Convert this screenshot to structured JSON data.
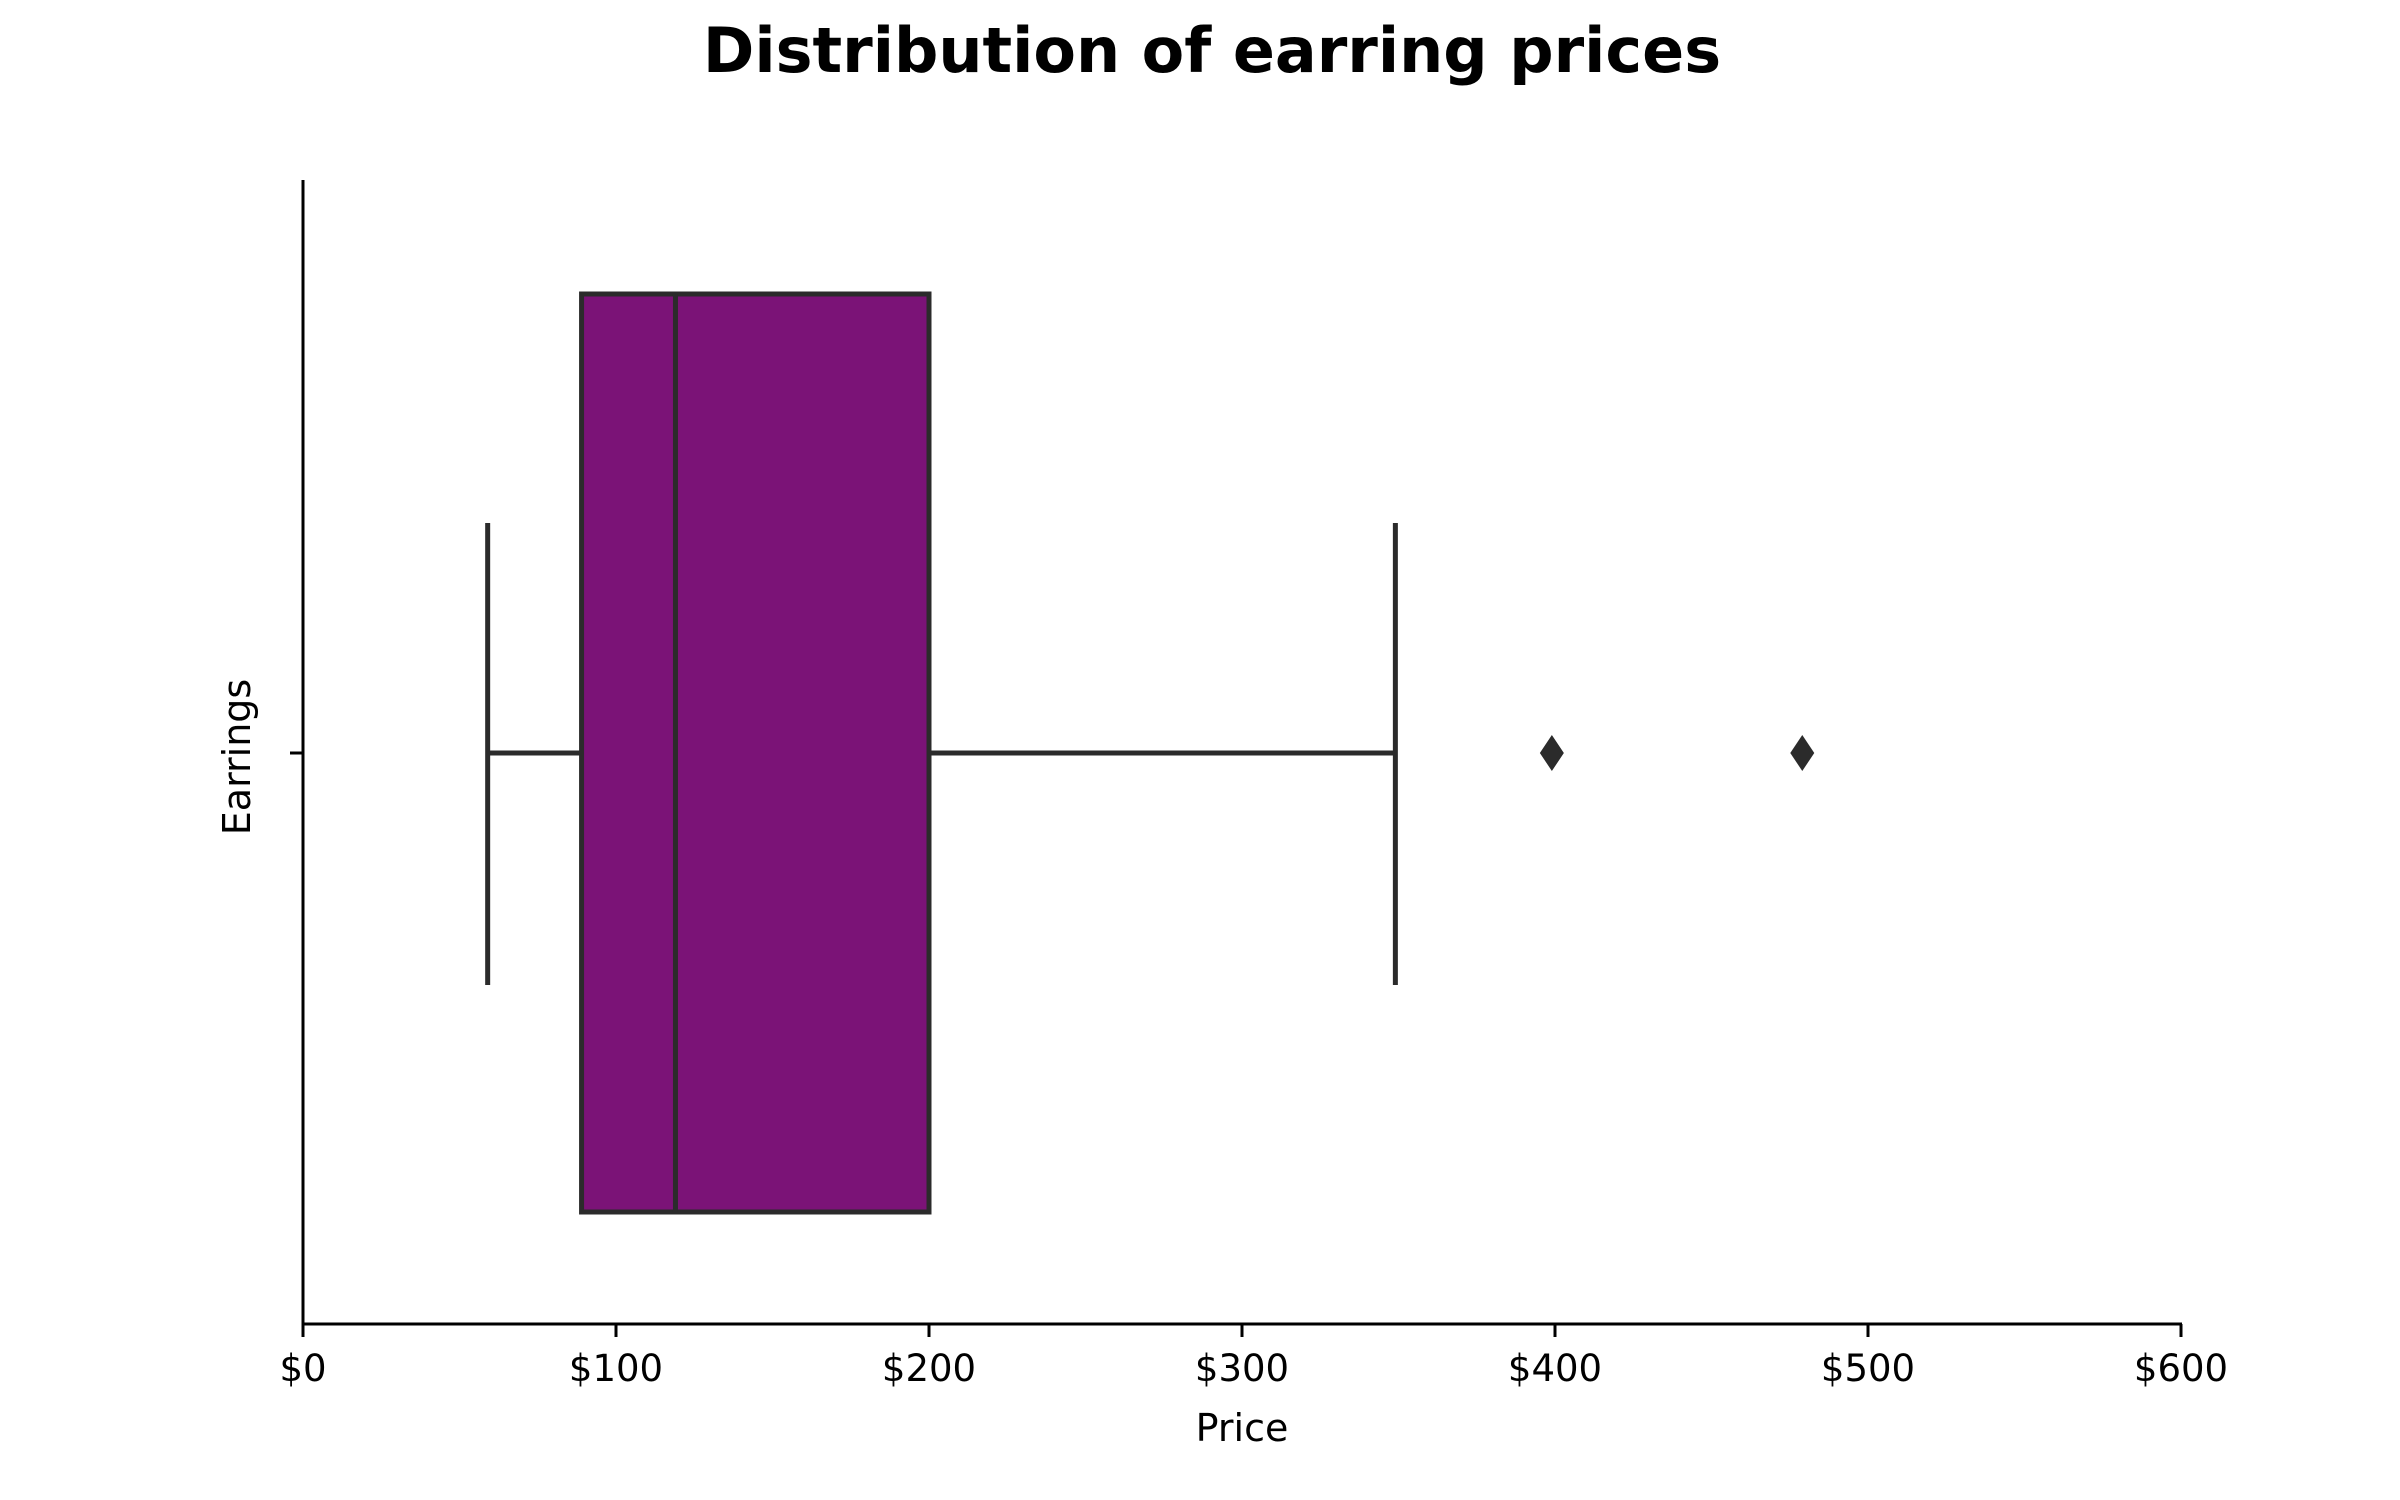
{
  "chart_data": {
    "type": "box",
    "title": "Distribution of earring prices",
    "xlabel": "Price",
    "ylabel": "Earrings",
    "xlim": [
      0,
      600
    ],
    "x_ticks": [
      0,
      100,
      200,
      300,
      400,
      500,
      600
    ],
    "x_tick_labels": [
      "$0",
      "$100",
      "$200",
      "$300",
      "$400",
      "$500",
      "$600"
    ],
    "grid": false,
    "series": [
      {
        "category": "Earrings",
        "whisker_low": 59,
        "q1": 89,
        "median": 119,
        "q3": 200,
        "whisker_high": 349,
        "outliers": [
          399,
          479
        ]
      }
    ],
    "colors": {
      "box_fill": "#7b1377",
      "box_edge": "#2b2b2b",
      "outlier": "#2b2b2b"
    }
  }
}
